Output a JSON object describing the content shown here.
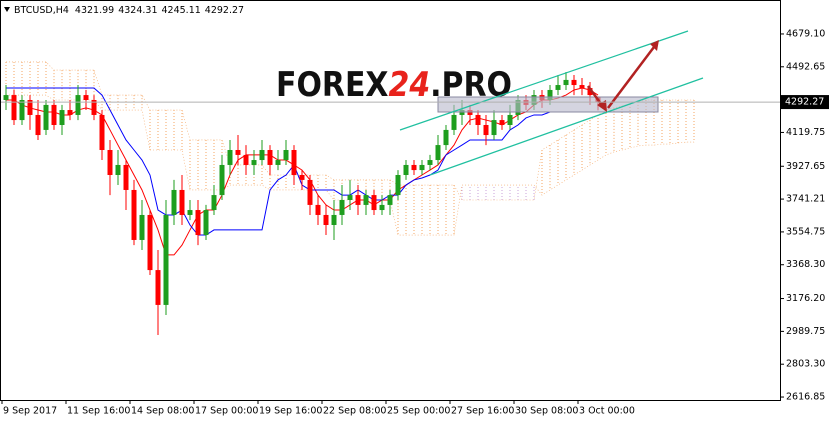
{
  "chart_data": {
    "type": "candlestick",
    "title": "BTCUSD,H4",
    "watermark": [
      "FOREX",
      "24",
      ".PRO"
    ],
    "categories": [
      "9 Sep 2017",
      null,
      null,
      null,
      null,
      null,
      null,
      null,
      "11 Sep 16:00",
      null,
      null,
      null,
      null,
      null,
      null,
      null,
      "14 Sep 08:00",
      null,
      null,
      null,
      null,
      null,
      null,
      null,
      "17 Sep 00:00",
      null,
      null,
      null,
      null,
      null,
      null,
      null,
      "19 Sep 16:00",
      null,
      null,
      null,
      null,
      null,
      null,
      null,
      "22 Sep 08:00",
      null,
      null,
      null,
      null,
      null,
      null,
      null,
      "25 Sep 00:00",
      null,
      null,
      null,
      null,
      null,
      null,
      null,
      "27 Sep 16:00",
      null,
      null,
      null,
      null,
      null,
      null,
      null,
      "30 Sep 08:00",
      null,
      null,
      null,
      null,
      null,
      null,
      null,
      "3 Oct 00:00",
      null,
      null,
      null,
      null,
      null,
      null,
      null,
      null,
      null,
      null,
      null,
      null,
      null,
      null
    ],
    "open": [
      4304,
      4332,
      4190,
      4304,
      4219,
      4134,
      4276,
      4162,
      4247,
      4219,
      4332,
      4304,
      4219,
      4020,
      3878,
      3935,
      3793,
      3509,
      3651,
      3338,
      3140,
      3651,
      3793,
      3651,
      3679,
      3537,
      3679,
      3764,
      3935,
      4020,
      3992,
      3935,
      3963,
      4020,
      3935,
      3963,
      4020,
      3878,
      3850,
      3708,
      3651,
      3594,
      3651,
      3736,
      3764,
      3708,
      3764,
      3679,
      3708,
      3764,
      3878,
      3935,
      3906,
      3935,
      3963,
      4048,
      4134,
      4219,
      4247,
      4219,
      4162,
      4105,
      4190,
      4162,
      4219,
      4304,
      4276,
      4332,
      4304,
      4361,
      4389,
      4418,
      4389,
      4372,
      4321.99,
      null,
      null,
      null,
      null,
      null,
      null,
      null,
      null,
      null,
      null,
      null,
      null
    ],
    "high": [
      4389,
      4361,
      4332,
      4332,
      4304,
      4304,
      4304,
      4276,
      4304,
      4389,
      4361,
      4332,
      4247,
      4077,
      4020,
      3963,
      3850,
      3736,
      3679,
      3452,
      3736,
      3850,
      3878,
      3736,
      3736,
      3708,
      3821,
      3992,
      4077,
      4105,
      4048,
      4020,
      4077,
      4048,
      4020,
      4077,
      4048,
      3906,
      3878,
      3764,
      3708,
      3736,
      3821,
      3850,
      3821,
      3793,
      3793,
      3764,
      3793,
      3906,
      3963,
      3963,
      3963,
      3992,
      4105,
      4162,
      4276,
      4304,
      4276,
      4247,
      4219,
      4247,
      4219,
      4276,
      4332,
      4332,
      4361,
      4361,
      4389,
      4446,
      4463,
      4446,
      4429,
      4406,
      4324.31,
      null,
      null,
      null,
      null,
      null,
      null,
      null,
      null,
      null,
      null,
      null,
      null
    ],
    "low": [
      4247,
      4162,
      4162,
      4134,
      4077,
      4105,
      4134,
      4105,
      4190,
      4190,
      4247,
      4190,
      3963,
      3764,
      3821,
      3679,
      3480,
      3452,
      3310,
      2969,
      3083,
      3594,
      3594,
      3622,
      3480,
      3509,
      3651,
      3736,
      3878,
      3935,
      3878,
      3878,
      3935,
      3878,
      3906,
      3935,
      3821,
      3793,
      3651,
      3594,
      3537,
      3509,
      3594,
      3679,
      3651,
      3651,
      3651,
      3651,
      3651,
      3736,
      3850,
      3878,
      3878,
      3906,
      3935,
      4020,
      4105,
      4162,
      4162,
      4105,
      4048,
      4077,
      4134,
      4134,
      4190,
      4247,
      4247,
      4259,
      4276,
      4332,
      4361,
      4332,
      4332,
      4276,
      4245.11,
      null,
      null,
      null,
      null,
      null,
      null,
      null,
      null,
      null,
      null,
      null,
      null
    ],
    "close": [
      4332,
      4190,
      4304,
      4219,
      4105,
      4276,
      4162,
      4247,
      4219,
      4332,
      4304,
      4219,
      4020,
      3878,
      3935,
      3793,
      3509,
      3651,
      3338,
      3140,
      3651,
      3793,
      3651,
      3679,
      3537,
      3679,
      3764,
      3935,
      4020,
      3992,
      3935,
      3963,
      4020,
      3935,
      3963,
      4020,
      3878,
      3850,
      3708,
      3651,
      3594,
      3651,
      3736,
      3764,
      3708,
      3764,
      3679,
      3708,
      3764,
      3878,
      3935,
      3906,
      3935,
      3963,
      4048,
      4134,
      4219,
      4247,
      4219,
      4162,
      4105,
      4190,
      4162,
      4219,
      4304,
      4276,
      4332,
      4304,
      4361,
      4389,
      4418,
      4389,
      4372,
      4332,
      4292.27,
      null,
      null,
      null,
      null,
      null,
      null,
      null,
      null,
      null,
      null,
      null,
      null
    ],
    "up_color": "#1e9e1e",
    "down_color": "#ff0000",
    "series": [
      {
        "color": "#ff0000",
        "values": [
          4304,
          4304,
          4276,
          4259,
          4247,
          4236,
          4236,
          4219,
          4219,
          4247,
          4259,
          4247,
          4219,
          4134,
          4048,
          3963,
          3878,
          3793,
          3679,
          3566,
          3424,
          3424,
          3480,
          3566,
          3651,
          3679,
          3679,
          3764,
          3878,
          3963,
          3992,
          3992,
          3992,
          3992,
          3963,
          3963,
          3935,
          3906,
          3850,
          3764,
          3708,
          3679,
          3679,
          3708,
          3736,
          3736,
          3708,
          3736,
          3736,
          3793,
          3821,
          3850,
          3878,
          3906,
          3935,
          3992,
          4048,
          4134,
          4190,
          4202,
          4190,
          4179,
          4162,
          4190,
          4219,
          4236,
          4276,
          4304,
          4304,
          4315,
          4332,
          4361,
          4372,
          4361,
          4332,
          null,
          null,
          null,
          null,
          null,
          null,
          null,
          null,
          null,
          null,
          null,
          null
        ]
      },
      {
        "color": "#0000ff",
        "values": [
          4372,
          4372,
          4372,
          4372,
          4372,
          4372,
          4372,
          4372,
          4372,
          4372,
          4372,
          4372,
          4332,
          4247,
          4162,
          4077,
          4020,
          3963,
          3878,
          3679,
          3651,
          3651,
          3679,
          3594,
          3537,
          3537,
          3566,
          3566,
          3566,
          3566,
          3566,
          3566,
          3566,
          3793,
          3850,
          3878,
          3935,
          3821,
          3793,
          3793,
          3793,
          3793,
          3764,
          3764,
          3793,
          3764,
          3736,
          3736,
          3764,
          3764,
          3821,
          3850,
          3861,
          3878,
          3906,
          3992,
          4020,
          4048,
          4077,
          4077,
          4077,
          4077,
          4077,
          4134,
          4162,
          4202,
          4219,
          4219,
          4236,
          4236,
          4236,
          4236,
          4236,
          4236,
          4236,
          null,
          null,
          null,
          null,
          null,
          null,
          null,
          null,
          null,
          null,
          null,
          null
        ]
      }
    ],
    "cloud": {
      "up_color": "#f4a460",
      "down_color": "#c8a2d8",
      "span_a": [
        4520,
        4520,
        4520,
        4520,
        4520,
        4520,
        4474,
        4474,
        4474,
        4474,
        4474,
        4474,
        4332,
        4332,
        4332,
        4332,
        4332,
        4332,
        4247,
        4247,
        4247,
        4247,
        4247,
        4077,
        4077,
        4077,
        4077,
        4077,
        3935,
        3935,
        3935,
        3935,
        3935,
        3878,
        3878,
        3878,
        3878,
        3878,
        3878,
        3878,
        3878,
        3850,
        3850,
        3850,
        3850,
        3850,
        3850,
        3850,
        3850,
        3821,
        3821,
        3821,
        3821,
        3821,
        3821,
        3821,
        3821,
        3736,
        3736,
        3736,
        3736,
        3736,
        3736,
        3736,
        3736,
        3736,
        3736,
        4020,
        4048,
        4077,
        4105,
        4134,
        4162,
        4190,
        4219,
        4247,
        4259,
        4270,
        4281,
        4293,
        4304,
        4304,
        4304,
        4304,
        4304,
        4304,
        4304
      ],
      "span_b": [
        4332,
        4332,
        4332,
        4332,
        4332,
        4332,
        4304,
        4304,
        4304,
        4304,
        4304,
        4304,
        4247,
        4247,
        4247,
        4247,
        4247,
        4247,
        4020,
        4020,
        4020,
        4020,
        4020,
        3793,
        3793,
        3793,
        3793,
        3793,
        3821,
        3821,
        3821,
        3821,
        3821,
        3793,
        3793,
        3793,
        3793,
        3793,
        3793,
        3793,
        3793,
        3736,
        3736,
        3736,
        3736,
        3736,
        3736,
        3736,
        3736,
        3537,
        3537,
        3537,
        3537,
        3537,
        3537,
        3537,
        3537,
        3821,
        3821,
        3821,
        3821,
        3821,
        3821,
        3821,
        3821,
        3821,
        3821,
        3764,
        3793,
        3821,
        3850,
        3878,
        3906,
        3935,
        3963,
        3992,
        4009,
        4020,
        4031,
        4043,
        4048,
        4048,
        4054,
        4054,
        4060,
        4065,
        4065
      ]
    },
    "ylim": [
      2600,
      4872
    ],
    "yticks": [
      {
        "value": 4679.1,
        "label": "4679.10"
      },
      4492.65,
      4119.75,
      3927.65,
      3741.21,
      3554.75,
      {
        "value": 3368.3,
        "label": "3368.30"
      },
      {
        "value": 3176.2,
        "label": "3176.20"
      },
      2989.75,
      {
        "value": 2803.3,
        "label": "2803.30"
      },
      2616.85
    ],
    "grid": false
  }
}
